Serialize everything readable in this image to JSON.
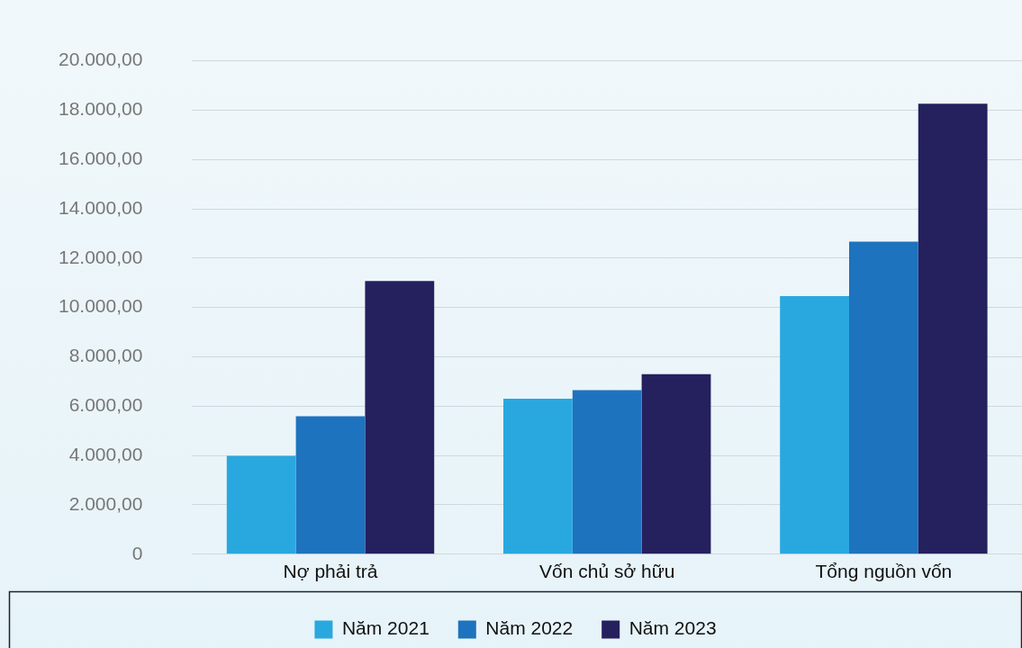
{
  "chart_data": {
    "type": "bar",
    "categories": [
      "Nợ phải trả",
      "Vốn chủ sở hữu",
      "Tổng nguồn vốn"
    ],
    "series": [
      {
        "name": "Năm 2021",
        "color": "#29a8e0",
        "values": [
          3990,
          6300,
          10460
        ]
      },
      {
        "name": "Năm 2022",
        "color": "#1e73be",
        "values": [
          5590,
          6650,
          12670
        ]
      },
      {
        "name": "Năm 2023",
        "color": "#25205e",
        "values": [
          11070,
          7300,
          18260
        ]
      }
    ],
    "ylim": [
      0,
      20000
    ],
    "yticks": [
      0,
      {
        "value": 2000,
        "label": "2.000,00"
      },
      {
        "value": 4000,
        "label": "4.000,00"
      },
      {
        "value": 6000,
        "label": "6.000,00"
      },
      {
        "value": 8000,
        "label": "8.000,00"
      },
      {
        "value": 10000,
        "label": "10.000,00"
      },
      {
        "value": 12000,
        "label": "12.000,00"
      },
      {
        "value": 14000,
        "label": "14.000,00"
      },
      {
        "value": 16000,
        "label": "16.000,00"
      },
      {
        "value": 18000,
        "label": "18.000,00"
      },
      {
        "value": 20000,
        "label": "20.000,00"
      }
    ],
    "grid": "y",
    "legend": "bottom"
  }
}
